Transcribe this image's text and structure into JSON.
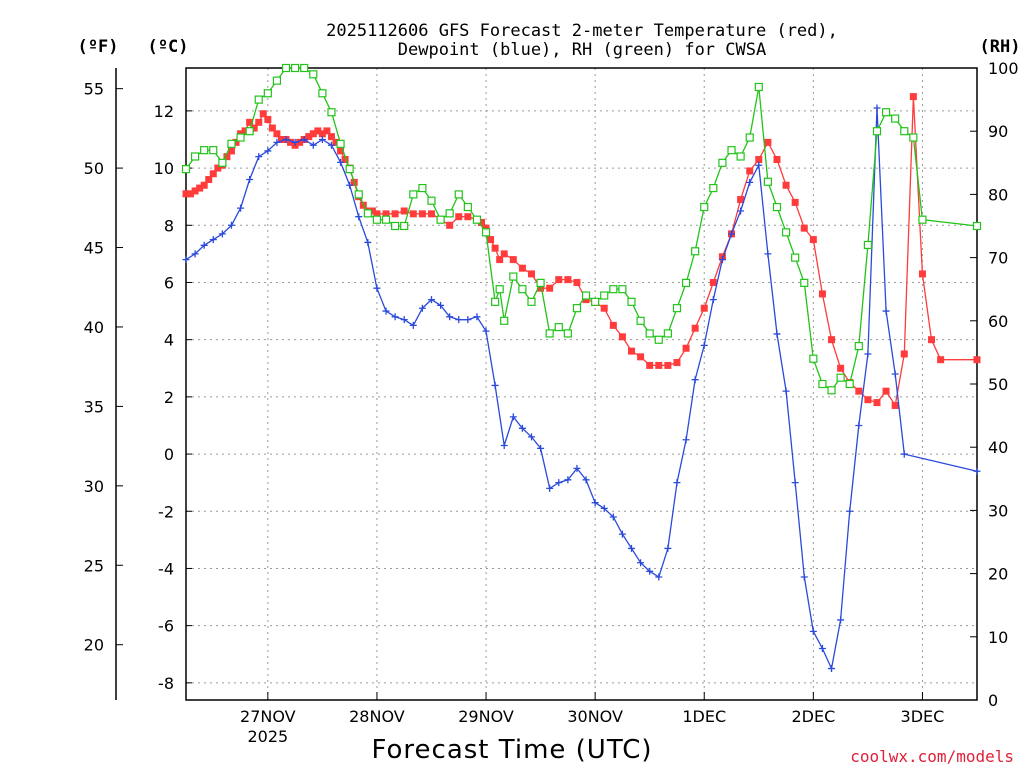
{
  "chart_data": {
    "type": "line",
    "title": [
      "2025112606 GFS Forecast 2-meter Temperature (red),",
      "Dewpoint (blue), RH (green) for CWSA"
    ],
    "xlabel": "Forecast Time (UTC)",
    "credit": "coolwx.com/models",
    "units": {
      "fahrenheit": "(ºF)",
      "celsius": "(ºC)",
      "rh": "(RH)"
    },
    "x_range_hours": [
      0,
      174
    ],
    "x_ticks": [
      {
        "hour": 18,
        "label": "27NOV",
        "sublabel": "2025"
      },
      {
        "hour": 42,
        "label": "28NOV",
        "sublabel": ""
      },
      {
        "hour": 66,
        "label": "29NOV",
        "sublabel": ""
      },
      {
        "hour": 90,
        "label": "30NOV",
        "sublabel": ""
      },
      {
        "hour": 114,
        "label": "1DEC",
        "sublabel": ""
      },
      {
        "hour": 138,
        "label": "2DEC",
        "sublabel": ""
      },
      {
        "hour": 162,
        "label": "3DEC",
        "sublabel": ""
      }
    ],
    "celsius_axis": {
      "range": [
        -8.6,
        13.5
      ],
      "ticks": [
        "12",
        "10",
        "8",
        "6",
        "4",
        "2",
        "0",
        "-2",
        "-4",
        "-6",
        "-8"
      ],
      "values": [
        12,
        10,
        8,
        6,
        4,
        2,
        0,
        -2,
        -4,
        -6,
        -8
      ]
    },
    "fahrenheit_axis": {
      "ticks": [
        "55",
        "50",
        "45",
        "40",
        "35",
        "30",
        "25",
        "20"
      ],
      "values": [
        55,
        50,
        45,
        40,
        35,
        30,
        25,
        20
      ]
    },
    "rh_axis": {
      "range": [
        0,
        100
      ],
      "ticks": [
        "100",
        "90",
        "80",
        "70",
        "60",
        "50",
        "40",
        "30",
        "20",
        "10",
        "0"
      ],
      "values": [
        100,
        90,
        80,
        70,
        60,
        50,
        40,
        30,
        20,
        10,
        0
      ]
    },
    "series": [
      {
        "name": "Temperature",
        "color": "#ff3b3b",
        "axis": "celsius",
        "marker": "square-filled",
        "points": [
          [
            0,
            9.1
          ],
          [
            1,
            9.1
          ],
          [
            2,
            9.2
          ],
          [
            3,
            9.3
          ],
          [
            4,
            9.4
          ],
          [
            5,
            9.6
          ],
          [
            6,
            9.8
          ],
          [
            7,
            10.0
          ],
          [
            8,
            10.1
          ],
          [
            9,
            10.4
          ],
          [
            10,
            10.6
          ],
          [
            11,
            10.9
          ],
          [
            12,
            11.2
          ],
          [
            13,
            11.3
          ],
          [
            14,
            11.6
          ],
          [
            15,
            11.4
          ],
          [
            16,
            11.6
          ],
          [
            17,
            11.9
          ],
          [
            18,
            11.7
          ],
          [
            19,
            11.4
          ],
          [
            20,
            11.2
          ],
          [
            21,
            11.0
          ],
          [
            22,
            11.0
          ],
          [
            23,
            10.9
          ],
          [
            24,
            10.8
          ],
          [
            25,
            10.9
          ],
          [
            26,
            11.0
          ],
          [
            27,
            11.1
          ],
          [
            28,
            11.2
          ],
          [
            29,
            11.3
          ],
          [
            30,
            11.2
          ],
          [
            31,
            11.3
          ],
          [
            32,
            11.1
          ],
          [
            33,
            10.9
          ],
          [
            34,
            10.6
          ],
          [
            35,
            10.3
          ],
          [
            36,
            10.0
          ],
          [
            37,
            9.5
          ],
          [
            38,
            9.0
          ],
          [
            39,
            8.7
          ],
          [
            40,
            8.5
          ],
          [
            41,
            8.5
          ],
          [
            42,
            8.4
          ],
          [
            44,
            8.4
          ],
          [
            46,
            8.4
          ],
          [
            48,
            8.5
          ],
          [
            50,
            8.4
          ],
          [
            52,
            8.4
          ],
          [
            54,
            8.4
          ],
          [
            56,
            8.2
          ],
          [
            58,
            8.0
          ],
          [
            60,
            8.3
          ],
          [
            62,
            8.3
          ],
          [
            64,
            8.2
          ],
          [
            65,
            8.1
          ],
          [
            66,
            7.9
          ],
          [
            67,
            7.5
          ],
          [
            68,
            7.2
          ],
          [
            69,
            6.8
          ],
          [
            70,
            7.0
          ],
          [
            72,
            6.8
          ],
          [
            74,
            6.5
          ],
          [
            76,
            6.3
          ],
          [
            78,
            5.8
          ],
          [
            80,
            5.8
          ],
          [
            82,
            6.1
          ],
          [
            84,
            6.1
          ],
          [
            86,
            6.0
          ],
          [
            88,
            5.4
          ],
          [
            90,
            5.3
          ],
          [
            92,
            5.1
          ],
          [
            94,
            4.5
          ],
          [
            96,
            4.1
          ],
          [
            98,
            3.6
          ],
          [
            100,
            3.4
          ],
          [
            102,
            3.1
          ],
          [
            104,
            3.1
          ],
          [
            106,
            3.1
          ],
          [
            108,
            3.2
          ],
          [
            110,
            3.7
          ],
          [
            112,
            4.4
          ],
          [
            114,
            5.1
          ],
          [
            116,
            6.0
          ],
          [
            118,
            6.9
          ],
          [
            120,
            7.7
          ],
          [
            122,
            8.9
          ],
          [
            124,
            9.9
          ],
          [
            126,
            10.3
          ],
          [
            128,
            10.9
          ],
          [
            130,
            10.3
          ],
          [
            132,
            9.4
          ],
          [
            134,
            8.8
          ],
          [
            136,
            7.9
          ],
          [
            138,
            7.5
          ],
          [
            140,
            5.6
          ],
          [
            142,
            4.0
          ],
          [
            144,
            3.0
          ],
          [
            146,
            2.5
          ],
          [
            148,
            2.2
          ],
          [
            150,
            1.9
          ],
          [
            152,
            1.8
          ],
          [
            154,
            2.2
          ],
          [
            156,
            1.7
          ],
          [
            158,
            3.5
          ],
          [
            160,
            12.5
          ],
          [
            162,
            6.3
          ],
          [
            164,
            4.0
          ],
          [
            166,
            3.3
          ],
          [
            174,
            3.3
          ]
        ]
      },
      {
        "name": "Dewpoint",
        "color": "#2a4adb",
        "axis": "celsius",
        "marker": "plus",
        "points": [
          [
            0,
            6.8
          ],
          [
            2,
            7.0
          ],
          [
            4,
            7.3
          ],
          [
            6,
            7.5
          ],
          [
            8,
            7.7
          ],
          [
            10,
            8.0
          ],
          [
            12,
            8.6
          ],
          [
            14,
            9.6
          ],
          [
            16,
            10.4
          ],
          [
            18,
            10.6
          ],
          [
            20,
            10.9
          ],
          [
            22,
            11.0
          ],
          [
            24,
            10.9
          ],
          [
            26,
            11.0
          ],
          [
            28,
            10.8
          ],
          [
            30,
            11.0
          ],
          [
            32,
            10.8
          ],
          [
            34,
            10.2
          ],
          [
            36,
            9.4
          ],
          [
            38,
            8.3
          ],
          [
            40,
            7.4
          ],
          [
            42,
            5.8
          ],
          [
            44,
            5.0
          ],
          [
            46,
            4.8
          ],
          [
            48,
            4.7
          ],
          [
            50,
            4.5
          ],
          [
            52,
            5.1
          ],
          [
            54,
            5.4
          ],
          [
            56,
            5.2
          ],
          [
            58,
            4.8
          ],
          [
            60,
            4.7
          ],
          [
            62,
            4.7
          ],
          [
            64,
            4.8
          ],
          [
            66,
            4.3
          ],
          [
            68,
            2.4
          ],
          [
            70,
            0.3
          ],
          [
            72,
            1.3
          ],
          [
            74,
            0.9
          ],
          [
            76,
            0.6
          ],
          [
            78,
            0.2
          ],
          [
            80,
            -1.2
          ],
          [
            82,
            -1.0
          ],
          [
            84,
            -0.9
          ],
          [
            86,
            -0.5
          ],
          [
            88,
            -0.9
          ],
          [
            90,
            -1.7
          ],
          [
            92,
            -1.9
          ],
          [
            94,
            -2.2
          ],
          [
            96,
            -2.8
          ],
          [
            98,
            -3.3
          ],
          [
            100,
            -3.8
          ],
          [
            102,
            -4.1
          ],
          [
            104,
            -4.3
          ],
          [
            106,
            -3.3
          ],
          [
            108,
            -1.0
          ],
          [
            110,
            0.5
          ],
          [
            112,
            2.6
          ],
          [
            114,
            3.8
          ],
          [
            116,
            5.4
          ],
          [
            118,
            6.8
          ],
          [
            120,
            7.7
          ],
          [
            122,
            8.5
          ],
          [
            124,
            9.5
          ],
          [
            126,
            10.1
          ],
          [
            128,
            7.0
          ],
          [
            130,
            4.2
          ],
          [
            132,
            2.2
          ],
          [
            134,
            -1.0
          ],
          [
            136,
            -4.3
          ],
          [
            138,
            -6.2
          ],
          [
            140,
            -6.8
          ],
          [
            142,
            -7.5
          ],
          [
            144,
            -5.8
          ],
          [
            146,
            -2.0
          ],
          [
            148,
            1.0
          ],
          [
            150,
            3.5
          ],
          [
            152,
            12.1
          ],
          [
            154,
            5.0
          ],
          [
            156,
            2.8
          ],
          [
            158,
            0.0
          ],
          [
            174,
            -0.6
          ]
        ]
      },
      {
        "name": "Relative Humidity",
        "color": "#22c41a",
        "axis": "rh",
        "marker": "square-open",
        "points": [
          [
            0,
            84
          ],
          [
            2,
            86
          ],
          [
            4,
            87
          ],
          [
            6,
            87
          ],
          [
            8,
            85
          ],
          [
            10,
            88
          ],
          [
            12,
            89
          ],
          [
            14,
            90
          ],
          [
            16,
            95
          ],
          [
            18,
            96
          ],
          [
            20,
            98
          ],
          [
            22,
            100
          ],
          [
            24,
            100
          ],
          [
            26,
            100
          ],
          [
            28,
            99
          ],
          [
            30,
            96
          ],
          [
            32,
            93
          ],
          [
            34,
            88
          ],
          [
            36,
            84
          ],
          [
            38,
            80
          ],
          [
            40,
            77
          ],
          [
            42,
            76
          ],
          [
            44,
            76
          ],
          [
            46,
            75
          ],
          [
            48,
            75
          ],
          [
            50,
            80
          ],
          [
            52,
            81
          ],
          [
            54,
            79
          ],
          [
            56,
            76
          ],
          [
            58,
            77
          ],
          [
            60,
            80
          ],
          [
            62,
            78
          ],
          [
            64,
            76
          ],
          [
            66,
            74
          ],
          [
            68,
            63
          ],
          [
            69,
            65
          ],
          [
            70,
            60
          ],
          [
            72,
            67
          ],
          [
            74,
            65
          ],
          [
            76,
            63
          ],
          [
            78,
            66
          ],
          [
            80,
            58
          ],
          [
            82,
            59
          ],
          [
            84,
            58
          ],
          [
            86,
            62
          ],
          [
            88,
            64
          ],
          [
            90,
            63
          ],
          [
            92,
            64
          ],
          [
            94,
            65
          ],
          [
            96,
            65
          ],
          [
            98,
            63
          ],
          [
            100,
            60
          ],
          [
            102,
            58
          ],
          [
            104,
            57
          ],
          [
            106,
            58
          ],
          [
            108,
            62
          ],
          [
            110,
            66
          ],
          [
            112,
            71
          ],
          [
            114,
            78
          ],
          [
            116,
            81
          ],
          [
            118,
            85
          ],
          [
            120,
            87
          ],
          [
            122,
            86
          ],
          [
            124,
            89
          ],
          [
            126,
            97
          ],
          [
            128,
            82
          ],
          [
            130,
            78
          ],
          [
            132,
            74
          ],
          [
            134,
            70
          ],
          [
            136,
            66
          ],
          [
            138,
            54
          ],
          [
            140,
            50
          ],
          [
            142,
            49
          ],
          [
            144,
            51
          ],
          [
            146,
            50
          ],
          [
            148,
            56
          ],
          [
            150,
            72
          ],
          [
            152,
            90
          ],
          [
            154,
            93
          ],
          [
            156,
            92
          ],
          [
            158,
            90
          ],
          [
            160,
            89
          ],
          [
            162,
            76
          ],
          [
            174,
            75
          ]
        ]
      }
    ]
  }
}
